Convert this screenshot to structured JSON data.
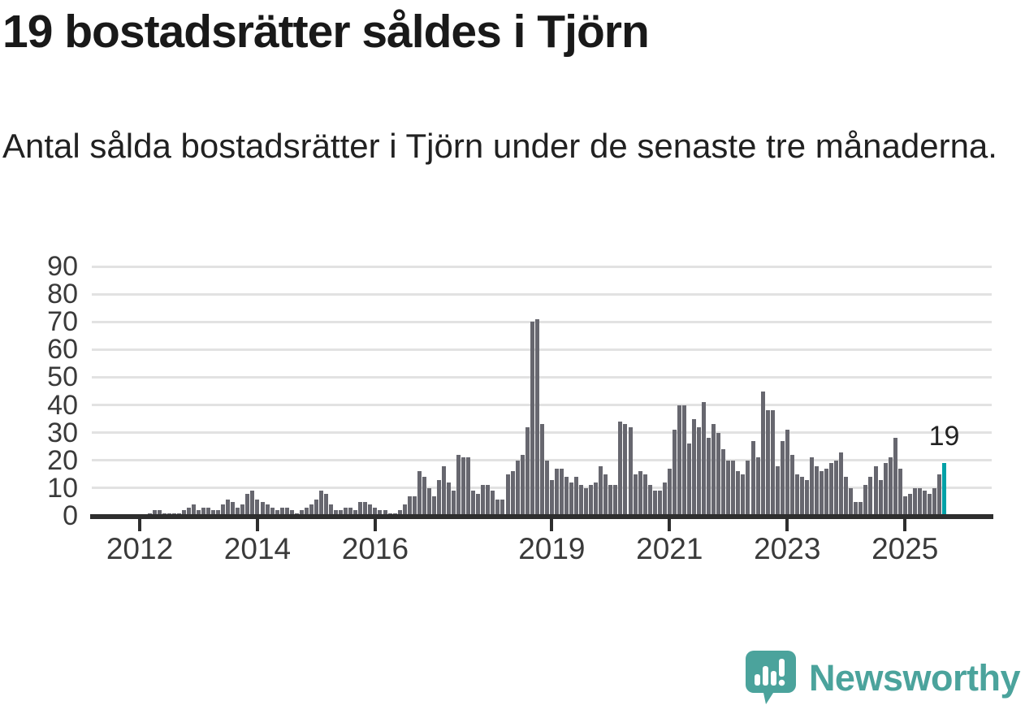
{
  "header": {
    "title": "19 bostadsrätter såldes i Tjörn",
    "subtitle": "Antal sålda bostadsrätter i Tjörn under de senaste tre månaderna."
  },
  "chart_data": {
    "type": "bar",
    "title": "19 bostadsrätter såldes i Tjörn",
    "xlabel": "",
    "ylabel": "",
    "start": "2012-03",
    "end": "2025-09",
    "frequency": "monthly",
    "values": [
      1,
      2,
      2,
      1,
      1,
      1,
      1,
      2,
      3,
      4,
      2,
      3,
      3,
      2,
      2,
      4,
      6,
      5,
      3,
      4,
      8,
      9,
      6,
      5,
      4,
      3,
      2,
      3,
      3,
      2,
      1,
      2,
      3,
      4,
      6,
      9,
      8,
      4,
      2,
      2,
      3,
      3,
      2,
      5,
      5,
      4,
      3,
      2,
      2,
      1,
      1,
      2,
      4,
      7,
      7,
      16,
      14,
      10,
      7,
      13,
      18,
      12,
      9,
      22,
      21,
      21,
      9,
      8,
      11,
      11,
      9,
      6,
      6,
      15,
      16,
      20,
      22,
      32,
      70,
      71,
      33,
      20,
      13,
      17,
      17,
      14,
      12,
      14,
      11,
      10,
      11,
      12,
      18,
      15,
      11,
      11,
      34,
      33,
      32,
      15,
      16,
      15,
      11,
      9,
      9,
      12,
      17,
      31,
      40,
      40,
      26,
      35,
      32,
      41,
      28,
      33,
      30,
      24,
      20,
      20,
      16,
      15,
      20,
      27,
      21,
      45,
      38,
      38,
      18,
      27,
      31,
      22,
      15,
      14,
      13,
      21,
      18,
      16,
      17,
      19,
      20,
      23,
      14,
      10,
      5,
      5,
      11,
      14,
      18,
      13,
      19,
      21,
      28,
      17,
      7,
      8,
      10,
      10,
      9,
      8,
      10,
      15,
      19
    ],
    "ylim": [
      0,
      90
    ],
    "ytick_step": 10,
    "xtick_years": [
      2012,
      2014,
      2016,
      2019,
      2021,
      2023,
      2025
    ],
    "grid": "horizontal",
    "legend": "none",
    "bar_color": "#67676f",
    "highlight_color": "#00a1a7",
    "highlight_last": true,
    "annotation": {
      "text": "19",
      "value": 19
    }
  },
  "footer": {
    "brand": "Newsworthy",
    "logo_color": "#4ba39c",
    "logo_icon": "speech-bubble-bar-chart-exclamation"
  }
}
